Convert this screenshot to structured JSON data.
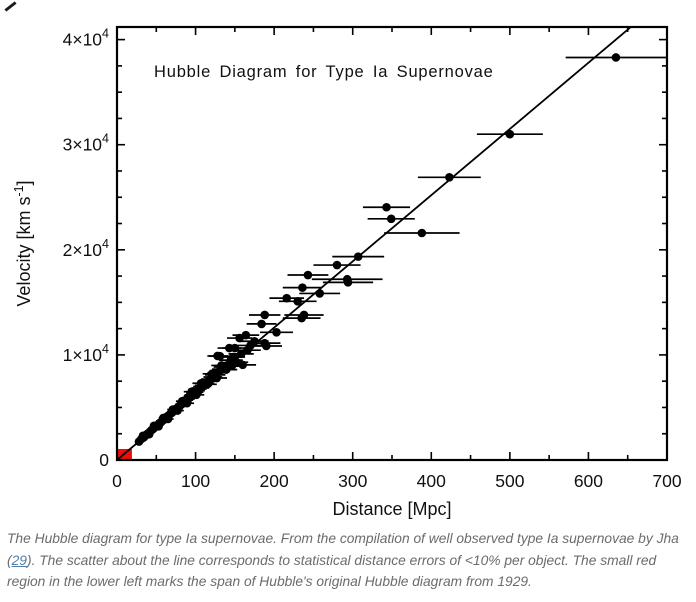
{
  "caption": {
    "part1": "The Hubble diagram for type Ia supernovae. From the compilation of well observed type Ia supernovae by Jha (",
    "link_text": "29",
    "part2": "). The scatter about the line corresponds to statistical distance errors of <10% per object. The small red region in the lower left marks the span of Hubble's original Hubble diagram from 1929.",
    "text_color": "#6a6b6e",
    "link_color": "#4d7ea8"
  },
  "chart_data": {
    "type": "scatter",
    "title": "Hubble Diagram for Type Ia Supernovae",
    "xlabel": "Distance [Mpc]",
    "ylabel_parts": {
      "pre": "Velocity [km s",
      "sup": "-1",
      "post": "]"
    },
    "xlim": [
      0,
      700
    ],
    "ylim": [
      0,
      41200
    ],
    "x_ticks": [
      {
        "value": 0,
        "label": "0"
      },
      {
        "value": 100,
        "label": "100"
      },
      {
        "value": 200,
        "label": "200"
      },
      {
        "value": 300,
        "label": "300"
      },
      {
        "value": 400,
        "label": "400"
      },
      {
        "value": 500,
        "label": "500"
      },
      {
        "value": 600,
        "label": "600"
      },
      {
        "value": 700,
        "label": "700"
      }
    ],
    "x_minor_step": 50,
    "y_ticks": [
      {
        "value": 0,
        "base": "0",
        "exp": ""
      },
      {
        "value": 10000,
        "base": "1×10",
        "exp": "4"
      },
      {
        "value": 20000,
        "base": "2×10",
        "exp": "4"
      },
      {
        "value": 30000,
        "base": "3×10",
        "exp": "4"
      },
      {
        "value": 40000,
        "base": "4×10",
        "exp": "4"
      }
    ],
    "y_minor_step": 2500,
    "grid": false,
    "legend": "none",
    "fit_line": {
      "slope_km_s_per_mpc": 63,
      "intercept": 0,
      "color": "#000000"
    },
    "hubble_1929_region": {
      "x": [
        0,
        19
      ],
      "y": [
        0,
        1050
      ],
      "color": "#e8100e"
    },
    "marker": {
      "color": "#000000",
      "radius_px": 4.3
    },
    "points_format": [
      "distance_mpc",
      "velocity_km_s",
      "distance_err_mpc"
    ],
    "points": [
      [
        28,
        1750,
        3
      ],
      [
        31,
        2000,
        3
      ],
      [
        33,
        2300,
        3
      ],
      [
        34,
        2150,
        3
      ],
      [
        36,
        2300,
        4
      ],
      [
        38,
        2450,
        4
      ],
      [
        40,
        2550,
        4
      ],
      [
        41,
        2450,
        4
      ],
      [
        42,
        2700,
        4
      ],
      [
        44,
        2850,
        4
      ],
      [
        46,
        2950,
        5
      ],
      [
        47,
        3250,
        5
      ],
      [
        48,
        3100,
        5
      ],
      [
        50,
        3250,
        5
      ],
      [
        52,
        3350,
        5
      ],
      [
        53,
        3200,
        5
      ],
      [
        54,
        3500,
        5
      ],
      [
        56,
        3600,
        6
      ],
      [
        58,
        3750,
        6
      ],
      [
        59,
        4000,
        6
      ],
      [
        60,
        3850,
        6
      ],
      [
        62,
        4000,
        6
      ],
      [
        64,
        4150,
        6
      ],
      [
        65,
        3900,
        7
      ],
      [
        66,
        4250,
        7
      ],
      [
        68,
        4400,
        7
      ],
      [
        70,
        4500,
        7
      ],
      [
        71,
        4800,
        7
      ],
      [
        72,
        4650,
        7
      ],
      [
        74,
        4800,
        7
      ],
      [
        76,
        4900,
        8
      ],
      [
        77,
        4700,
        8
      ],
      [
        78,
        5050,
        8
      ],
      [
        80,
        5150,
        8
      ],
      [
        82,
        5300,
        8
      ],
      [
        83,
        5600,
        8
      ],
      [
        84,
        5450,
        8
      ],
      [
        86,
        5550,
        9
      ],
      [
        88,
        5700,
        9
      ],
      [
        89,
        5400,
        9
      ],
      [
        90,
        5800,
        9
      ],
      [
        92,
        5950,
        9
      ],
      [
        94,
        6100,
        9
      ],
      [
        95,
        6500,
        10
      ],
      [
        96,
        6200,
        10
      ],
      [
        98,
        6350,
        10
      ],
      [
        100,
        6450,
        10
      ],
      [
        101,
        6200,
        10
      ],
      [
        102,
        6600,
        10
      ],
      [
        104,
        6750,
        10
      ],
      [
        106,
        6850,
        11
      ],
      [
        107,
        7300,
        11
      ],
      [
        108,
        7000,
        11
      ],
      [
        110,
        7100,
        11
      ],
      [
        113,
        7300,
        11
      ],
      [
        115,
        7200,
        12
      ],
      [
        116,
        7500,
        12
      ],
      [
        119,
        7700,
        12
      ],
      [
        121,
        8200,
        12
      ],
      [
        122,
        7900,
        12
      ],
      [
        125,
        8100,
        13
      ],
      [
        127,
        7800,
        13
      ],
      [
        128,
        8300,
        13
      ],
      [
        128,
        9900,
        13
      ],
      [
        131,
        8500,
        13
      ],
      [
        131,
        9880,
        14
      ],
      [
        133,
        9000,
        13
      ],
      [
        134,
        8650,
        13
      ],
      [
        137,
        8850,
        14
      ],
      [
        139,
        8600,
        14
      ],
      [
        140,
        9000,
        14
      ],
      [
        143,
        10650,
        15
      ],
      [
        145,
        9500,
        15
      ],
      [
        146,
        8930,
        15
      ],
      [
        148,
        9800,
        15
      ],
      [
        150,
        10650,
        16
      ],
      [
        152,
        9300,
        15
      ],
      [
        156,
        11600,
        16
      ],
      [
        158,
        10100,
        16
      ],
      [
        160,
        9050,
        17
      ],
      [
        164,
        11880,
        17
      ],
      [
        166,
        10450,
        17
      ],
      [
        170,
        10900,
        17
      ],
      [
        175,
        11300,
        18
      ],
      [
        184,
        12950,
        19
      ],
      [
        188,
        13800,
        20
      ],
      [
        188,
        11120,
        20
      ],
      [
        190,
        10850,
        20
      ],
      [
        203,
        12150,
        21
      ],
      [
        216,
        15400,
        22
      ],
      [
        230,
        15100,
        24
      ],
      [
        235,
        13500,
        24
      ],
      [
        236,
        16400,
        25
      ],
      [
        238,
        13800,
        25
      ],
      [
        243,
        17600,
        26
      ],
      [
        258,
        15850,
        26
      ],
      [
        280,
        18550,
        30
      ],
      [
        293,
        17200,
        45
      ],
      [
        294,
        16900,
        32
      ],
      [
        307,
        19350,
        33
      ],
      [
        343,
        24050,
        30
      ],
      [
        349,
        22950,
        30
      ],
      [
        388,
        21600,
        48
      ],
      [
        423,
        26900,
        40
      ],
      [
        500,
        31000,
        42
      ],
      [
        635,
        38300,
        64
      ]
    ]
  }
}
